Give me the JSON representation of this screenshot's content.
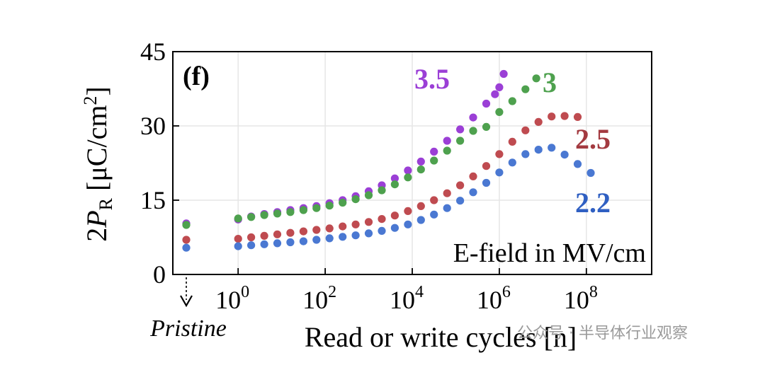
{
  "chart_data": {
    "type": "scatter",
    "panel_label": "(f)",
    "xlabel": "Read or write cycles [n]",
    "ylabel_parts": {
      "main": "2",
      "var": "P",
      "sub": "R",
      "unit": " [μC/cm",
      "sup": "2",
      "close": "]"
    },
    "ylim": [
      0,
      45
    ],
    "yticks": [
      0,
      15,
      30,
      45
    ],
    "x_scale": "log10",
    "xlim_exp": [
      -1.5,
      9.5
    ],
    "xtick_exps": [
      0,
      2,
      4,
      6,
      8
    ],
    "xtick_base": "10",
    "grid": true,
    "annotation": "E-field in MV/cm",
    "pristine_label": "Pristine",
    "pristine": [
      {
        "series": "3.5",
        "value": 10.3
      },
      {
        "series": "3",
        "value": 10.0
      },
      {
        "series": "2.5",
        "value": 7.0
      },
      {
        "series": "2.2",
        "value": 5.4
      }
    ],
    "series": [
      {
        "name": "3.5",
        "color": "#9b3fd6",
        "points": [
          [
            0,
            11.1
          ],
          [
            0.3,
            11.7
          ],
          [
            0.6,
            12.2
          ],
          [
            0.9,
            12.6
          ],
          [
            1.2,
            13.0
          ],
          [
            1.5,
            13.4
          ],
          [
            1.8,
            13.8
          ],
          [
            2.1,
            14.4
          ],
          [
            2.4,
            15.0
          ],
          [
            2.7,
            15.8
          ],
          [
            3.0,
            16.8
          ],
          [
            3.3,
            18.0
          ],
          [
            3.6,
            19.4
          ],
          [
            3.9,
            21.0
          ],
          [
            4.2,
            22.8
          ],
          [
            4.5,
            24.8
          ],
          [
            4.8,
            27.0
          ],
          [
            5.1,
            29.3
          ],
          [
            5.4,
            31.7
          ],
          [
            5.7,
            34.5
          ],
          [
            5.9,
            36.4
          ],
          [
            6.0,
            37.8
          ],
          [
            6.1,
            40.5
          ]
        ]
      },
      {
        "name": "3",
        "color": "#4ea14e",
        "points": [
          [
            0,
            11.3
          ],
          [
            0.3,
            11.6
          ],
          [
            0.6,
            12.0
          ],
          [
            0.9,
            12.3
          ],
          [
            1.2,
            12.6
          ],
          [
            1.5,
            13.0
          ],
          [
            1.8,
            13.4
          ],
          [
            2.1,
            13.9
          ],
          [
            2.4,
            14.5
          ],
          [
            2.7,
            15.2
          ],
          [
            3.0,
            16.0
          ],
          [
            3.3,
            17.0
          ],
          [
            3.6,
            18.2
          ],
          [
            3.9,
            19.6
          ],
          [
            4.2,
            21.2
          ],
          [
            4.5,
            23.0
          ],
          [
            4.8,
            25.0
          ],
          [
            5.1,
            27.0
          ],
          [
            5.4,
            29.0
          ],
          [
            5.7,
            29.8
          ],
          [
            6.0,
            32.8
          ],
          [
            6.3,
            35.0
          ],
          [
            6.6,
            37.4
          ],
          [
            6.85,
            39.6
          ]
        ]
      },
      {
        "name": "2.5",
        "color": "#bf4b50",
        "points": [
          [
            0,
            7.2
          ],
          [
            0.3,
            7.5
          ],
          [
            0.6,
            7.8
          ],
          [
            0.9,
            8.1
          ],
          [
            1.2,
            8.4
          ],
          [
            1.5,
            8.7
          ],
          [
            1.8,
            9.0
          ],
          [
            2.1,
            9.3
          ],
          [
            2.4,
            9.7
          ],
          [
            2.7,
            10.1
          ],
          [
            3.0,
            10.6
          ],
          [
            3.3,
            11.2
          ],
          [
            3.6,
            11.9
          ],
          [
            3.9,
            12.8
          ],
          [
            4.2,
            13.8
          ],
          [
            4.5,
            15.0
          ],
          [
            4.8,
            16.4
          ],
          [
            5.1,
            18.0
          ],
          [
            5.4,
            19.8
          ],
          [
            5.7,
            21.9
          ],
          [
            6.0,
            24.3
          ],
          [
            6.3,
            26.8
          ],
          [
            6.6,
            29.1
          ],
          [
            6.9,
            30.8
          ],
          [
            7.2,
            31.9
          ],
          [
            7.5,
            32.0
          ],
          [
            7.8,
            31.8
          ]
        ]
      },
      {
        "name": "2.2",
        "color": "#4a78d2",
        "points": [
          [
            0,
            5.7
          ],
          [
            0.3,
            5.9
          ],
          [
            0.6,
            6.1
          ],
          [
            0.9,
            6.3
          ],
          [
            1.2,
            6.5
          ],
          [
            1.5,
            6.7
          ],
          [
            1.8,
            7.0
          ],
          [
            2.1,
            7.3
          ],
          [
            2.4,
            7.6
          ],
          [
            2.7,
            7.9
          ],
          [
            3.0,
            8.3
          ],
          [
            3.3,
            8.8
          ],
          [
            3.6,
            9.4
          ],
          [
            3.9,
            10.1
          ],
          [
            4.2,
            11.0
          ],
          [
            4.5,
            12.1
          ],
          [
            4.8,
            13.4
          ],
          [
            5.1,
            14.9
          ],
          [
            5.4,
            16.6
          ],
          [
            5.7,
            18.5
          ],
          [
            6.0,
            20.6
          ],
          [
            6.3,
            22.6
          ],
          [
            6.6,
            24.3
          ],
          [
            6.9,
            25.2
          ],
          [
            7.2,
            25.6
          ],
          [
            7.5,
            24.2
          ],
          [
            7.8,
            22.3
          ],
          [
            8.1,
            20.5
          ]
        ]
      }
    ]
  },
  "watermark": "公众号 · 半导体行业观察"
}
